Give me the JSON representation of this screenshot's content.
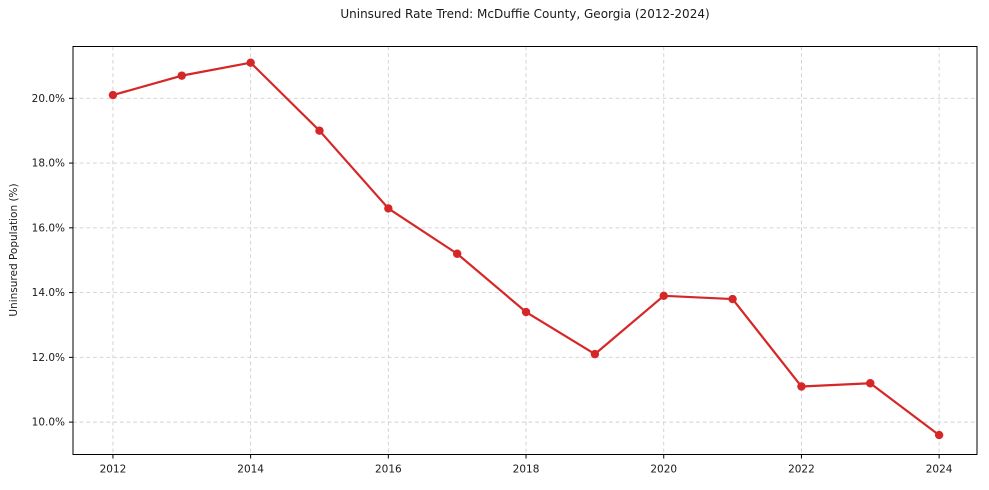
{
  "chart_data": {
    "type": "line",
    "title": "Uninsured Rate Trend: McDuffie County, Georgia (2012-2024)",
    "xlabel": "",
    "ylabel": "Uninsured Population (%)",
    "x": [
      2012,
      2013,
      2014,
      2015,
      2016,
      2017,
      2018,
      2019,
      2020,
      2021,
      2022,
      2023,
      2024
    ],
    "series": [
      {
        "name": "Uninsured rate",
        "values": [
          20.1,
          20.7,
          21.1,
          19.0,
          16.6,
          15.2,
          13.4,
          12.1,
          13.9,
          13.8,
          11.1,
          11.2,
          9.6
        ]
      }
    ],
    "xlim": [
      2011.42,
      2024.55
    ],
    "ylim": [
      9.0,
      21.6
    ],
    "x_ticks": [
      2012,
      2014,
      2016,
      2018,
      2020,
      2022,
      2024
    ],
    "x_tick_labels": [
      "2012",
      "2014",
      "2016",
      "2018",
      "2020",
      "2022",
      "2024"
    ],
    "y_ticks": [
      10,
      12,
      14,
      16,
      18,
      20
    ],
    "y_tick_labels": [
      "10.0%",
      "12.0%",
      "14.0%",
      "16.0%",
      "18.0%",
      "20.0%"
    ],
    "grid": true,
    "grid_style": "dashed",
    "legend": "none",
    "line_color": "#d62728",
    "marker": "circle",
    "grid_color": "#cfcfcf",
    "axis_color": "#000000",
    "text_color": "#1a1a1a",
    "background_color": "#ffffff"
  }
}
